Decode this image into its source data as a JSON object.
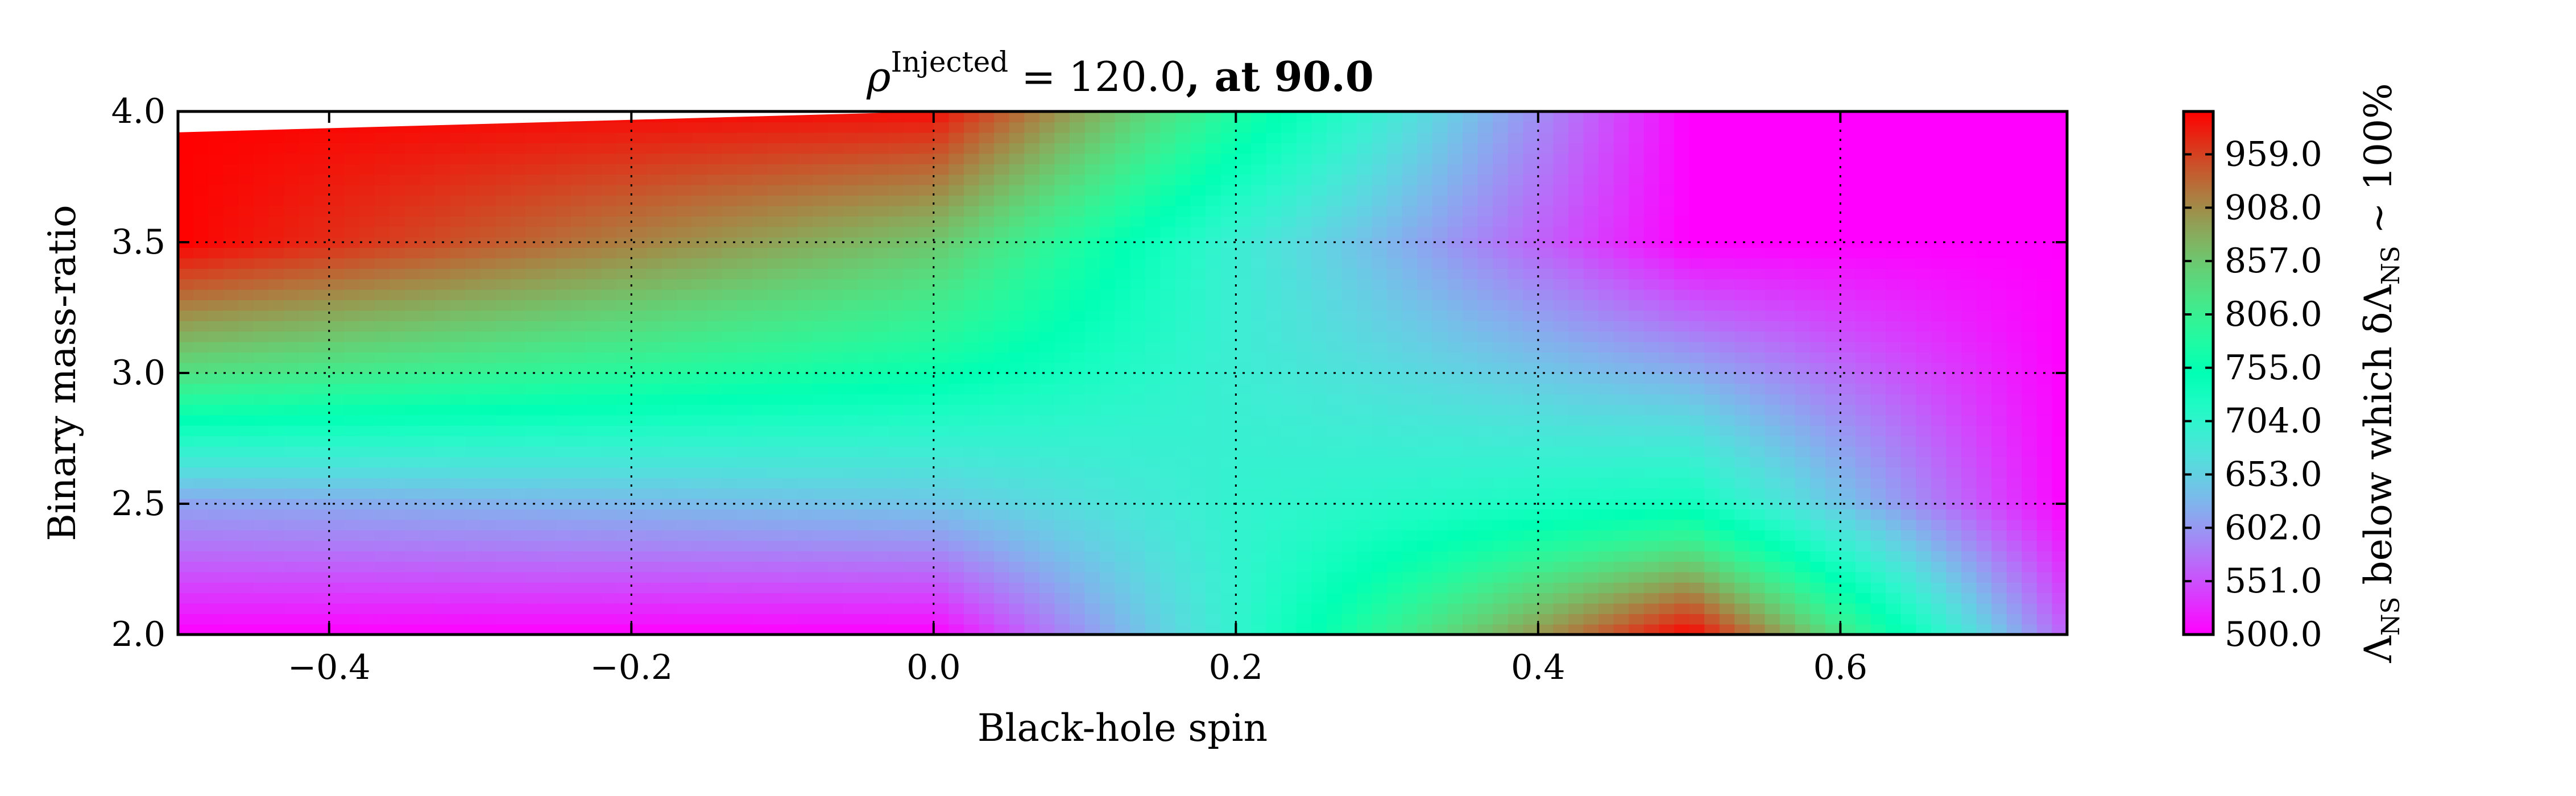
{
  "chart_data": {
    "type": "heatmap",
    "title": {
      "symbol": "ρ",
      "superscript": "Injected",
      "relation": " = 120.0",
      "suffix": ", at 90.0"
    },
    "xlabel": "Black-hole spin",
    "ylabel": "Binary mass-ratio",
    "xlim": [
      -0.5,
      0.75
    ],
    "ylim": [
      2.0,
      4.0
    ],
    "x_ticks": [
      -0.4,
      -0.2,
      0.0,
      0.2,
      0.4,
      0.6
    ],
    "x_tick_labels": [
      "−0.4",
      "−0.2",
      "0.0",
      "0.2",
      "0.4",
      "0.6"
    ],
    "y_ticks": [
      2.0,
      2.5,
      3.0,
      3.5,
      4.0
    ],
    "y_tick_labels": [
      "2.0",
      "2.5",
      "3.0",
      "3.5",
      "4.0"
    ],
    "grid": true,
    "colormap": "rainbow",
    "colorbar": {
      "label": {
        "lambda1": "Λ",
        "sub1": "NS",
        "text": " below which δ",
        "lambda2": "Λ",
        "sub2": "NS",
        "tail": " ∼ 100%"
      },
      "min": 500.0,
      "max": 1000.0,
      "ticks": [
        500.0,
        551.0,
        602.0,
        653.0,
        704.0,
        755.0,
        806.0,
        857.0,
        908.0,
        959.0
      ],
      "tick_labels": [
        "500.0",
        "551.0",
        "602.0",
        "653.0",
        "704.0",
        "755.0",
        "806.0",
        "857.0",
        "908.0",
        "959.0"
      ]
    },
    "nodes": [
      {
        "x": -0.5,
        "y": 2.0,
        "value": 500
      },
      {
        "x": 0.0,
        "y": 2.0,
        "value": 500
      },
      {
        "x": 0.2,
        "y": 2.0,
        "value": 700
      },
      {
        "x": 0.5,
        "y": 2.0,
        "value": 1000
      },
      {
        "x": 0.75,
        "y": 2.0,
        "value": 560
      },
      {
        "x": -0.5,
        "y": 2.5,
        "value": 610
      },
      {
        "x": 0.0,
        "y": 2.5,
        "value": 640
      },
      {
        "x": 0.2,
        "y": 2.5,
        "value": 700
      },
      {
        "x": 0.5,
        "y": 2.5,
        "value": 735
      },
      {
        "x": 0.75,
        "y": 2.5,
        "value": 500
      },
      {
        "x": -0.5,
        "y": 3.0,
        "value": 830
      },
      {
        "x": 0.0,
        "y": 3.0,
        "value": 760
      },
      {
        "x": 0.2,
        "y": 3.0,
        "value": 690
      },
      {
        "x": 0.5,
        "y": 3.0,
        "value": 620
      },
      {
        "x": 0.75,
        "y": 3.0,
        "value": 500
      },
      {
        "x": -0.5,
        "y": 3.5,
        "value": 1000
      },
      {
        "x": 0.0,
        "y": 3.5,
        "value": 860
      },
      {
        "x": 0.2,
        "y": 3.5,
        "value": 690
      },
      {
        "x": 0.5,
        "y": 3.5,
        "value": 500
      },
      {
        "x": 0.75,
        "y": 3.5,
        "value": 500
      },
      {
        "x": -0.5,
        "y": 4.0,
        "value": 1000
      },
      {
        "x": 0.0,
        "y": 4.0,
        "value": 990
      },
      {
        "x": 0.2,
        "y": 4.0,
        "value": 780
      },
      {
        "x": 0.5,
        "y": 4.0,
        "value": 500
      },
      {
        "x": 0.75,
        "y": 4.0,
        "value": 500
      }
    ],
    "unfilled_region": [
      {
        "x": -0.5,
        "y": 4.0
      },
      {
        "x": 0.0,
        "y": 4.0
      },
      {
        "x": -0.5,
        "y": 3.92
      }
    ]
  }
}
